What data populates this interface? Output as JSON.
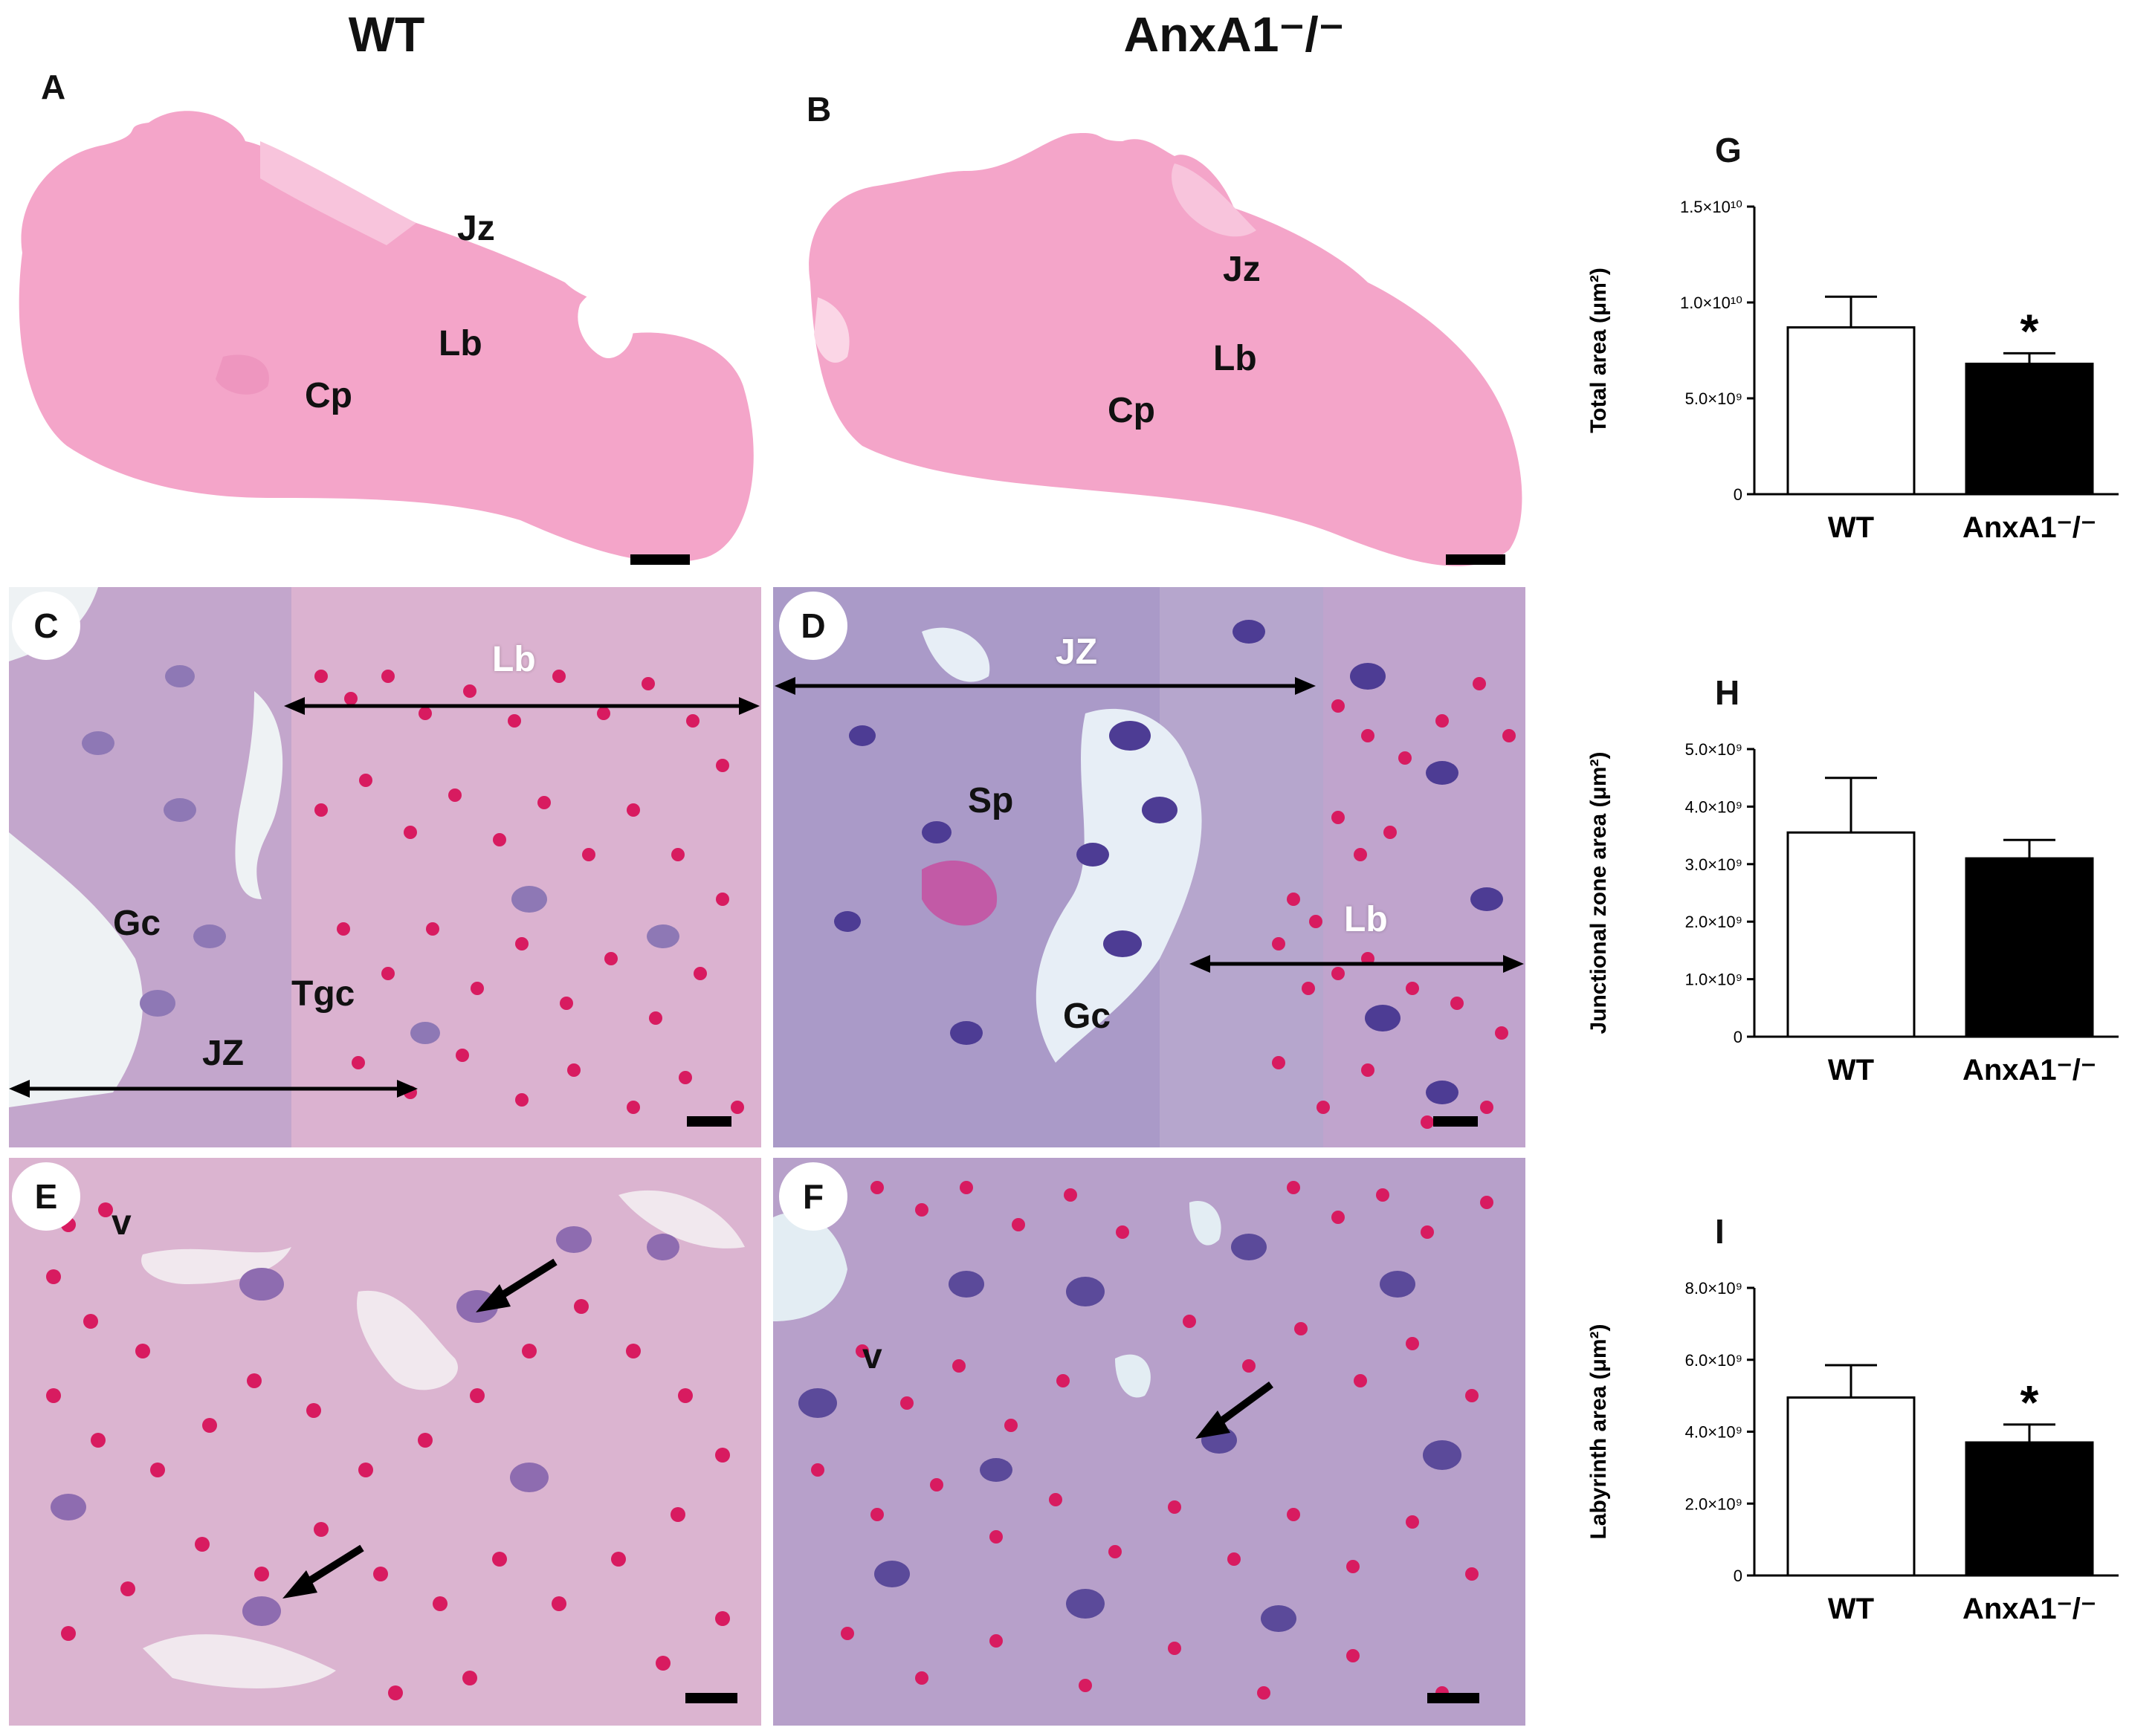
{
  "figure": {
    "column_headers": {
      "left": "WT",
      "right": "AnxA1⁻/⁻"
    },
    "panels": {
      "A": {
        "label": "A",
        "labels": {
          "jz": "Jz",
          "lb": "Lb",
          "cp": "Cp"
        }
      },
      "B": {
        "label": "B",
        "labels": {
          "jz": "Jz",
          "lb": "Lb",
          "cp": "Cp"
        }
      },
      "C": {
        "label": "C",
        "labels": {
          "lb": "Lb",
          "gc": "Gc",
          "tgc": "Tgc",
          "jz": "JZ"
        }
      },
      "D": {
        "label": "D",
        "labels": {
          "jz": "JZ",
          "sp": "Sp",
          "lb": "Lb",
          "gc": "Gc"
        }
      },
      "E": {
        "label": "E",
        "labels": {
          "v": "v"
        }
      },
      "F": {
        "label": "F",
        "labels": {
          "v": "v"
        }
      }
    },
    "colors": {
      "he_pink": "#f4a5c9",
      "tissue_pale": "#e6c6dc",
      "tissue_mauve": "#c39fc6",
      "tissue_purple": "#a68ac2",
      "nucleus": "#5b4a9a",
      "rbc": "#d81b60",
      "bar_wt": "#ffffff",
      "bar_ko": "#000000"
    },
    "icons": {
      "arrows": "black-arrow-icon",
      "scale": "scale-bar"
    }
  },
  "chart_data": [
    {
      "panel": "G",
      "type": "bar",
      "ylabel": "Total area (μm²)",
      "categories": [
        "WT",
        "AnxA1⁻/⁻"
      ],
      "values": [
        8700000000.0,
        6800000000.0
      ],
      "errors": [
        1600000000.0,
        550000000.0
      ],
      "significance": [
        "",
        "*"
      ],
      "ylim": [
        0,
        15000000000.0
      ],
      "yticks": [
        0,
        5000000000.0,
        10000000000.0,
        15000000000.0
      ],
      "ytick_labels": [
        "0",
        "5.0×10⁹",
        "1.0×10¹⁰",
        "1.5×10¹⁰"
      ]
    },
    {
      "panel": "H",
      "type": "bar",
      "ylabel": "Junctional zone area (μm²)",
      "categories": [
        "WT",
        "AnxA1⁻/⁻"
      ],
      "values": [
        3550000000.0,
        3100000000.0
      ],
      "errors": [
        950000000.0,
        320000000.0
      ],
      "significance": [
        "",
        ""
      ],
      "ylim": [
        0,
        5000000000.0
      ],
      "yticks": [
        0,
        1000000000.0,
        2000000000.0,
        3000000000.0,
        4000000000.0,
        5000000000.0
      ],
      "ytick_labels": [
        "0",
        "1.0×10⁹",
        "2.0×10⁹",
        "3.0×10⁹",
        "4.0×10⁹",
        "5.0×10⁹"
      ]
    },
    {
      "panel": "I",
      "type": "bar",
      "ylabel": "Labyrinth area (μm²)",
      "categories": [
        "WT",
        "AnxA1⁻/⁻"
      ],
      "values": [
        4950000000.0,
        3700000000.0
      ],
      "errors": [
        900000000.0,
        500000000.0
      ],
      "significance": [
        "",
        "*"
      ],
      "ylim": [
        0,
        8000000000.0
      ],
      "yticks": [
        0,
        2000000000.0,
        4000000000.0,
        6000000000.0,
        8000000000.0
      ],
      "ytick_labels": [
        "0",
        "2.0×10⁹",
        "4.0×10⁹",
        "6.0×10⁹",
        "8.0×10⁹"
      ]
    }
  ]
}
